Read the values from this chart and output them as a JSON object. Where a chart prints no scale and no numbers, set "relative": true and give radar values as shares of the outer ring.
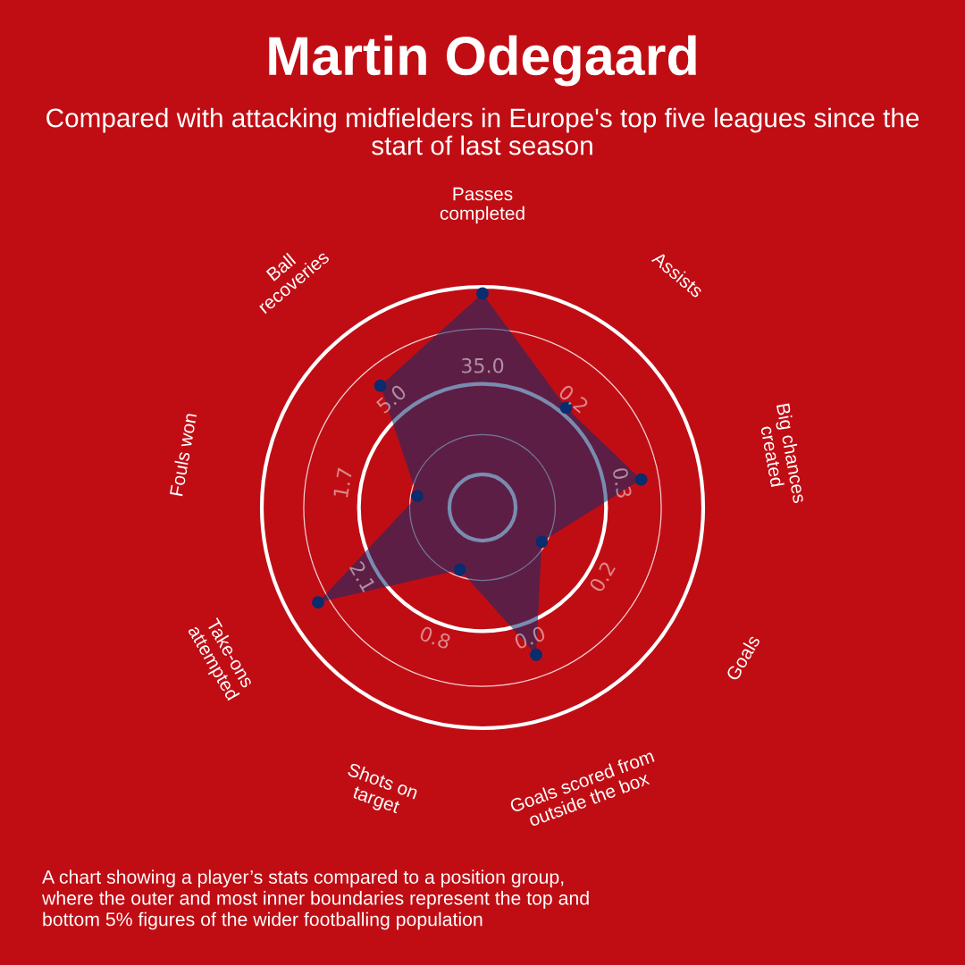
{
  "chart_data": {
    "type": "radar",
    "title": "Martin Odegaard",
    "subtitle": "Compared with attacking midfielders in Europe's top five leagues since the\nstart of last season",
    "categories": [
      "Passes\ncompleted",
      "Assists",
      "Big chances\ncreated",
      "Goals",
      "Goals scored from\noutside the box",
      "Shots on\ntarget",
      "Take-ons\nattempted",
      "Fouls won",
      "Ball\nrecoveries"
    ],
    "relative": true,
    "series": [
      {
        "color": "#0b2d6e",
        "values": [
          0.97,
          0.59,
          0.73,
          0.31,
          0.71,
          0.3,
          0.86,
          0.3,
          0.72
        ]
      }
    ],
    "marker": "circle",
    "grid": true,
    "annotations": [
      {
        "text": "35.0",
        "x": "Passes\ncompleted"
      },
      {
        "text": "0.2",
        "x": "Assists"
      },
      {
        "text": "0.3",
        "x": "Big chances\ncreated"
      },
      {
        "text": "0.2",
        "x": "Goals"
      },
      {
        "text": "0.0",
        "x": "Goals scored from\noutside the box"
      },
      {
        "text": "0.8",
        "x": "Shots on\ntarget"
      },
      {
        "text": "2.1",
        "x": "Take-ons\nattempted"
      },
      {
        "text": "1.7",
        "x": "Fouls won"
      },
      {
        "text": "5.0",
        "x": "Ball\nrecoveries"
      },
      "A chart showing a player’s stats compared to a position group,\nwhere the outer and most inner boundaries represent the top and\nbottom 5% figures of the wider footballing population"
    ]
  }
}
